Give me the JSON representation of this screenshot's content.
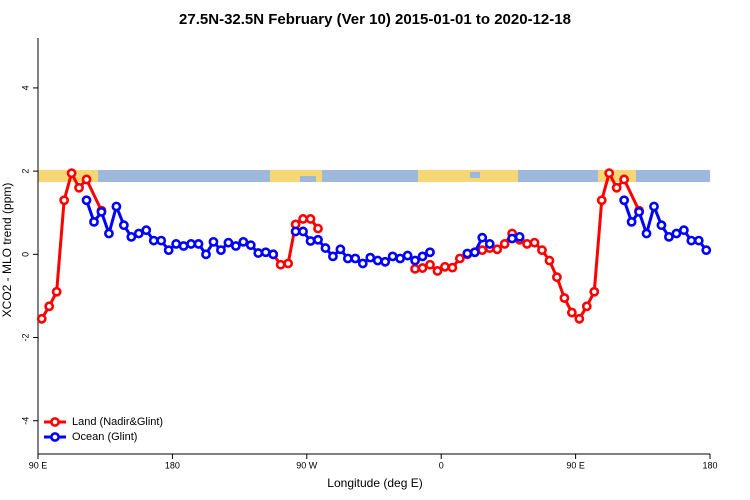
{
  "chart_data": {
    "type": "line",
    "title": "27.5N-32.5N February (Ver 10)   2015-01-01 to 2020-12-18",
    "x_label": "Longitude (deg E)",
    "y_label": "XCO2 - MLO trend (ppm)",
    "xlim": [
      90,
      540
    ],
    "xticks": [
      {
        "value": 90,
        "label": "90 E"
      },
      {
        "value": 180,
        "label": "180"
      },
      {
        "value": 270,
        "label": "90 W"
      },
      {
        "value": 360,
        "label": "0"
      },
      {
        "value": 450,
        "label": "90 E"
      },
      {
        "value": 540,
        "label": "180"
      }
    ],
    "ylim": [
      -4.8,
      5.2
    ],
    "yticks": [
      -4,
      -2,
      0,
      2,
      4
    ],
    "legend": "bottom-left",
    "series": [
      {
        "name": "Land (Nadir&Glint)",
        "color": "#ff0000",
        "x": [
          92.5,
          97.5,
          102.5,
          107.5,
          112.5,
          117.5,
          122.5,
          132.5,
          137.5,
          247.5,
          252.5,
          257.5,
          262.5,
          267.5,
          272.5,
          277.5,
          282.5,
          342.5,
          347.5,
          352.5,
          357.5,
          362.5,
          367.5,
          372.5,
          377.5,
          382.5,
          387.5,
          392.5,
          397.5,
          402.5,
          407.5,
          412.5,
          417.5,
          422.5,
          427.5,
          432.5,
          437.5,
          442.5,
          447.5,
          452.5,
          457.5,
          462.5,
          467.5,
          472.5,
          477.5,
          482.5,
          492.5
        ],
        "values": [
          -1.55,
          -1.25,
          -0.9,
          1.3,
          1.95,
          1.6,
          1.8,
          1.05,
          null,
          0.0,
          -0.25,
          -0.22,
          0.72,
          0.85,
          0.85,
          0.62,
          null,
          -0.35,
          -0.33,
          -0.25,
          -0.4,
          -0.3,
          -0.32,
          -0.1,
          0.0,
          0.05,
          0.1,
          0.15,
          0.12,
          0.25,
          0.5,
          0.35,
          0.25,
          0.28,
          0.1,
          -0.15,
          -0.55,
          -1.05,
          -1.4,
          -1.55,
          -1.25,
          -0.9,
          1.3,
          1.95,
          1.6,
          1.8,
          1.05
        ]
      },
      {
        "name": "Ocean (Glint)",
        "color": "#0000ff",
        "x": [
          122.5,
          127.5,
          132.5,
          137.5,
          142.5,
          147.5,
          152.5,
          157.5,
          162.5,
          167.5,
          172.5,
          177.5,
          182.5,
          187.5,
          192.5,
          197.5,
          202.5,
          207.5,
          212.5,
          217.5,
          222.5,
          227.5,
          232.5,
          237.5,
          242.5,
          247.5,
          252.5,
          262.5,
          267.5,
          272.5,
          277.5,
          282.5,
          287.5,
          292.5,
          297.5,
          302.5,
          307.5,
          312.5,
          317.5,
          322.5,
          327.5,
          332.5,
          337.5,
          342.5,
          347.5,
          352.5,
          357.5,
          377.5,
          382.5,
          387.5,
          392.5,
          397.5,
          407.5,
          412.5,
          417.5,
          482.5,
          487.5,
          492.5,
          497.5,
          502.5,
          507.5,
          512.5,
          517.5,
          522.5,
          527.5,
          532.5,
          537.5
        ],
        "values": [
          1.3,
          0.78,
          1.02,
          0.5,
          1.15,
          0.7,
          0.42,
          0.5,
          0.58,
          0.33,
          0.33,
          0.1,
          0.25,
          0.2,
          0.25,
          0.25,
          0.0,
          0.3,
          0.1,
          0.28,
          0.2,
          0.3,
          0.22,
          0.03,
          0.05,
          0.0,
          null,
          0.55,
          0.55,
          0.32,
          0.35,
          0.15,
          -0.05,
          0.12,
          -0.1,
          -0.1,
          -0.22,
          -0.08,
          -0.15,
          -0.18,
          -0.05,
          -0.1,
          -0.03,
          -0.15,
          -0.05,
          0.05,
          null,
          0.02,
          0.05,
          0.4,
          0.25,
          null,
          0.38,
          0.42,
          null,
          1.3,
          0.78,
          1.02,
          0.5,
          1.15,
          0.7,
          0.42,
          0.5,
          0.58,
          0.33,
          0.33,
          0.1
        ]
      }
    ]
  }
}
